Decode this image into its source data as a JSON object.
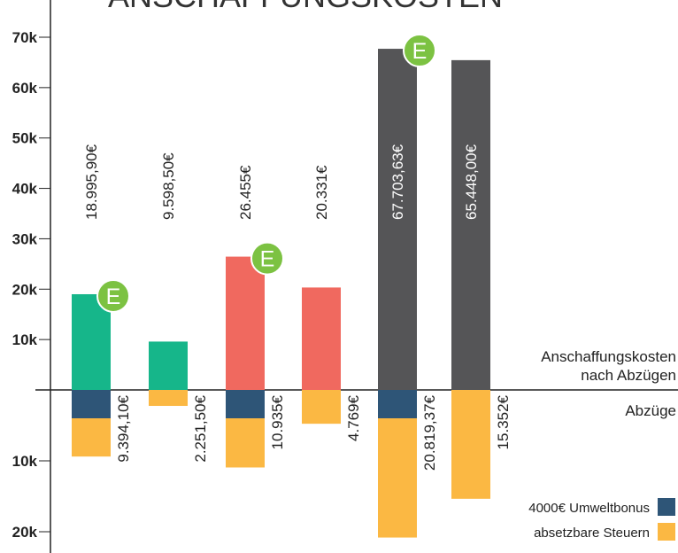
{
  "chart_data": {
    "type": "bar",
    "title": "ANSCHAFFUNGSKOSTEN",
    "ylim": [
      0,
      70000
    ],
    "yticks": [
      {
        "value": 10000,
        "label": "10k"
      },
      {
        "value": 20000,
        "label": "20k"
      },
      {
        "value": 30000,
        "label": "30k"
      },
      {
        "value": 40000,
        "label": "40k"
      },
      {
        "value": 50000,
        "label": "50k"
      },
      {
        "value": 60000,
        "label": "60k"
      },
      {
        "value": 70000,
        "label": "70k"
      }
    ],
    "y2lim": [
      0,
      20000
    ],
    "y2ticks": [
      {
        "value": 10000,
        "label": "10k"
      },
      {
        "value": 20000,
        "label": "20k"
      }
    ],
    "above_label": [
      "Anschaffungskosten",
      "nach Abzügen"
    ],
    "below_label": "Abzüge",
    "values": [
      18995.9,
      9598.5,
      26455,
      20331,
      67703.63,
      65448.0
    ],
    "value_labels": [
      "18.995,90€",
      "9.598,50€",
      "26.455€",
      "20.331€",
      "67.703,63€",
      "65.448,00€"
    ],
    "colors": [
      "#16b68a",
      "#16b68a",
      "#f0695f",
      "#f0695f",
      "#555557",
      "#555557"
    ],
    "label_colors": [
      "#222",
      "#222",
      "#222",
      "#222",
      "#fff",
      "#fff"
    ],
    "deduction_series": [
      {
        "name": "4000€ Umweltbonus",
        "color": "#2e5577",
        "axis": "y2",
        "values": [
          4000,
          null,
          4000,
          null,
          4000,
          null
        ]
      },
      {
        "name": "absetzbare Steuern",
        "color": "#fbb843",
        "axis": "y2",
        "values": [
          5394.1,
          2251.5,
          6935,
          4769,
          16819.37,
          15352
        ]
      }
    ],
    "deduction_totals": {
      "values": [
        9394.1,
        2251.5,
        10935,
        4769,
        20819.37,
        15352
      ],
      "value_labels": [
        "9.394,10€",
        "2.251,50€",
        "10.935€",
        "4.769€",
        "20.819,37€",
        "15.352€"
      ]
    },
    "badge": "E",
    "badge_color": "#7cc242",
    "badge_bars": [
      0,
      2,
      4
    ]
  }
}
